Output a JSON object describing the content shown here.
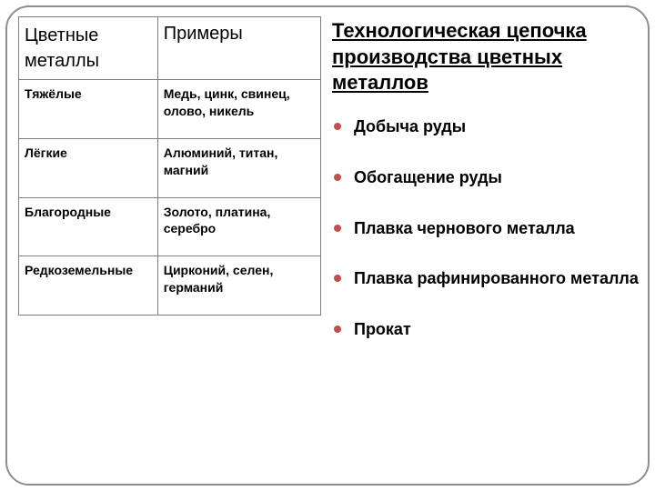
{
  "colors": {
    "frame_border": "#8a8f93",
    "table_border": "#808080",
    "bullet": "#c0504d",
    "text": "#000000",
    "background": "#ffffff"
  },
  "table": {
    "headers": {
      "col1": "Цветные металлы",
      "col2": "Примеры"
    },
    "rows": [
      {
        "category": "Тяжёлые",
        "examples": "Медь, цинк, свинец, олово, никель"
      },
      {
        "category": "Лёгкие",
        "examples": "Алюминий, титан, магний"
      },
      {
        "category": "Благородные",
        "examples": "Золото, платина, серебро"
      },
      {
        "category": "Редкоземельные",
        "examples": "Цирконий, селен, германий"
      }
    ]
  },
  "title": "Технологическая цепочка производства цветных металлов",
  "chain": [
    "Добыча руды",
    "Обогащение руды",
    "Плавка чернового металла",
    "Плавка рафинированного металла",
    "Прокат"
  ],
  "fonts": {
    "header_size": 20,
    "cell_size": 14,
    "title_size": 22,
    "list_size": 18
  }
}
